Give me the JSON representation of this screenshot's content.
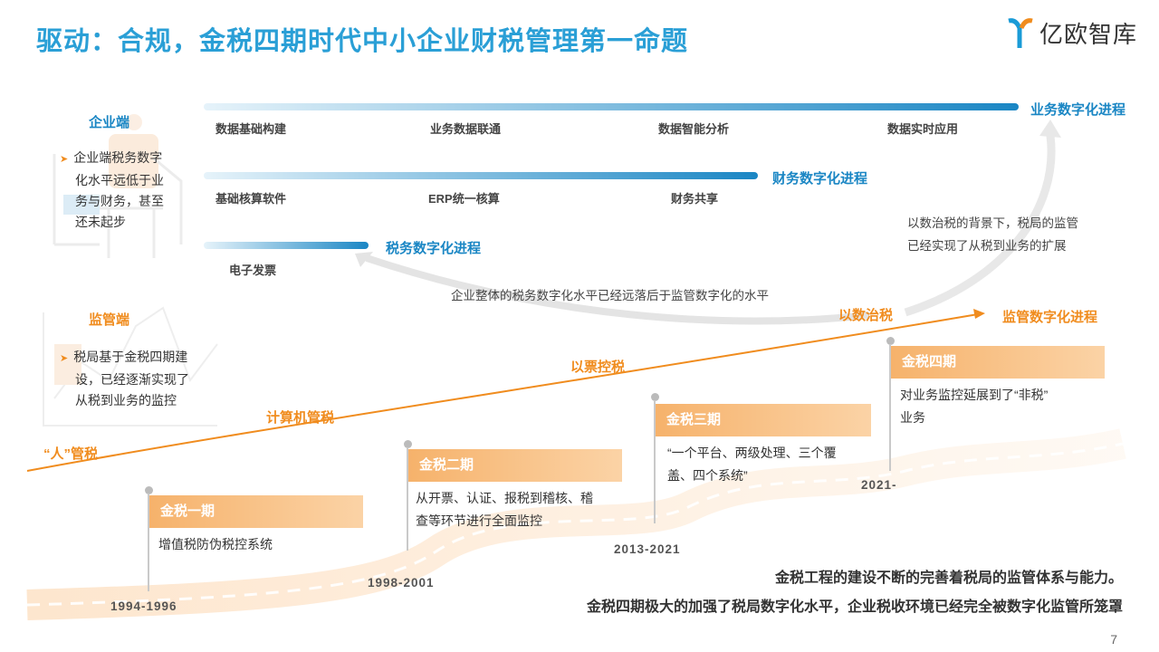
{
  "title": "驱动：合规，金税四期时代中小企业财税管理第一命题",
  "logo": {
    "text": "亿欧智库",
    "icon": "yiou-logo-icon"
  },
  "enterprise": {
    "heading": "企业端",
    "bullet": [
      "企业端税务数字",
      "化水平远低于业",
      "务与财务，甚至",
      "还未起步"
    ]
  },
  "regulator": {
    "heading": "监管端",
    "bullet": [
      "税局基于金税四期建",
      "设，已经逐渐实现了",
      "从税到业务的监控"
    ]
  },
  "tracks": {
    "business": {
      "label": "业务数字化进程",
      "items": [
        "数据基础构建",
        "业务数据联通",
        "数据智能分析",
        "数据实时应用"
      ]
    },
    "finance": {
      "label": "财务数字化进程",
      "items": [
        "基础核算软件",
        "ERP统一核算",
        "财务共享"
      ]
    },
    "tax": {
      "label": "税务数字化进程",
      "items": [
        "电子发票"
      ]
    },
    "supervision": {
      "label": "监管数字化进程"
    }
  },
  "notes": {
    "lag": "企业整体的税务数字化水平已经远落后于监管数字化的水平",
    "extension": [
      "以数治税的背景下，税局的监管",
      "已经实现了从税到业务的扩展"
    ]
  },
  "stages": [
    "“人”管税",
    "计算机管税",
    "以票控税",
    "以数治税"
  ],
  "phases": [
    {
      "name": "金税一期",
      "desc": [
        "增值税防伪税控系统"
      ],
      "year": "1994-1996"
    },
    {
      "name": "金税二期",
      "desc": [
        "从开票、认证、报税到稽核、稽",
        "查等环节进行全面监控"
      ],
      "year": "1998-2001"
    },
    {
      "name": "金税三期",
      "desc": [
        "“一个平台、两级处理、三个覆",
        "盖、四个系统”"
      ],
      "year": "2013-2021"
    },
    {
      "name": "金税四期",
      "desc": [
        "对业务监控延展到了“非税”",
        "业务"
      ],
      "year": "2021-"
    }
  ],
  "conclusion": [
    "金税工程的建设不断的完善着税局的监管体系与能力。",
    "金税四期极大的加强了税局数字化水平，企业税收环境已经完全被数字化监管所笼罩"
  ],
  "page": "7",
  "colors": {
    "title": "#2a9fd6",
    "blue": "#1a86c4",
    "orange": "#f08c1e",
    "phase": "#f6b26b"
  }
}
